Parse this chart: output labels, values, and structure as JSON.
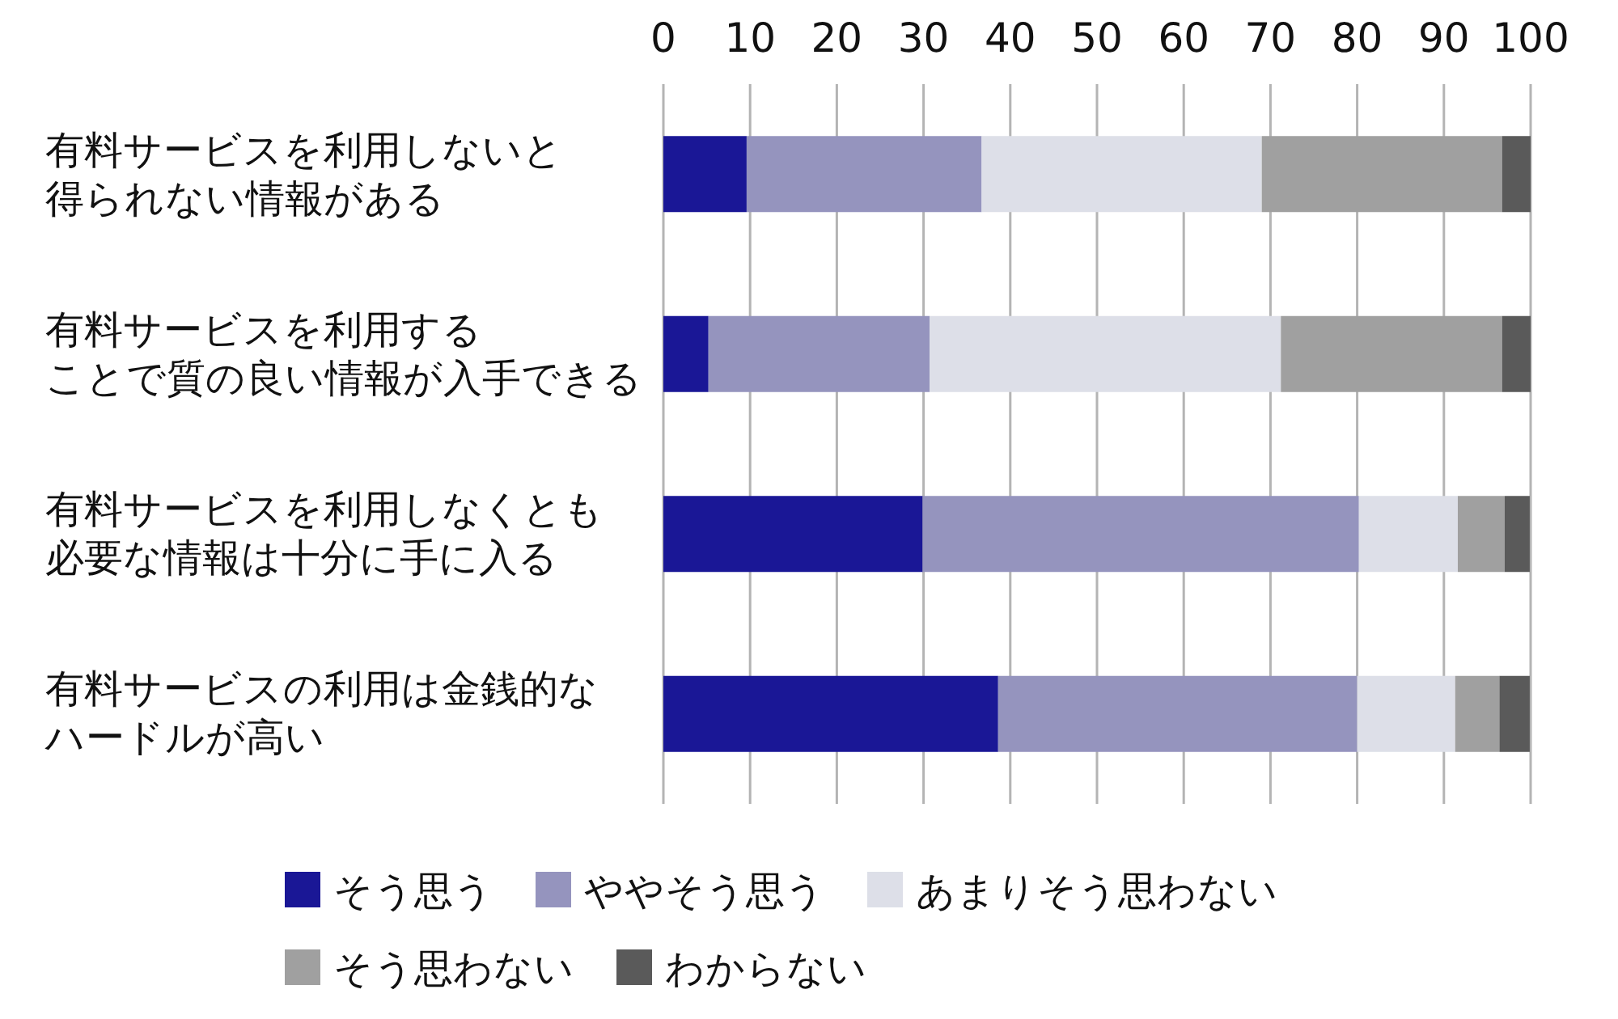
{
  "chart_data": {
    "type": "bar",
    "orientation": "horizontal",
    "stacked": true,
    "categories": [
      "有料サービスを利用しないと得られない情報がある",
      "有料サービスを利用することで質の良い情報が入手できる",
      "有料サービスを利用しなくとも必要な情報は十分に手に入る",
      "有料サービスの利用は金銭的なハードルが高い"
    ],
    "series": [
      {
        "name": "そう思う",
        "color": "#1a1796",
        "values": [
          9.6,
          5.2,
          29.9,
          38.6
        ]
      },
      {
        "name": "ややそう思う",
        "color": "#9594be",
        "values": [
          27.1,
          25.5,
          50.3,
          41.4
        ]
      },
      {
        "name": "あまりそう思わない",
        "color": "#dddfe8",
        "values": [
          32.3,
          40.5,
          11.4,
          11.3
        ]
      },
      {
        "name": "そう思わない",
        "color": "#a0a0a0",
        "values": [
          27.7,
          25.5,
          5.4,
          5.1
        ]
      },
      {
        "name": "わからない",
        "color": "#5a5a5a",
        "values": [
          3.3,
          3.3,
          2.9,
          3.5
        ]
      }
    ],
    "xlim": [
      0,
      100
    ],
    "xticks": [
      0,
      10,
      20,
      30,
      40,
      50,
      60,
      70,
      80,
      90,
      100
    ],
    "grid": "x",
    "legend": "bottom"
  }
}
